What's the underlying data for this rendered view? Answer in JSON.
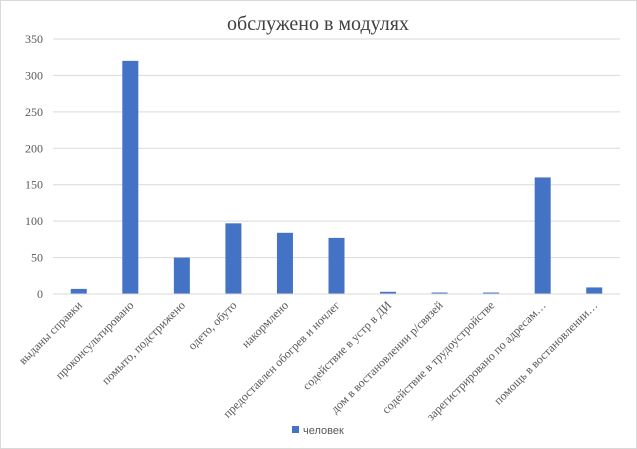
{
  "chart_data": {
    "type": "bar",
    "title": "обслужено в модулях",
    "categories": [
      "выданы справки",
      "проконсультировано",
      "помыто, подстрижено",
      "одето, обуто",
      "накормлено",
      "предоставлен обогрев и ночлег",
      "содействие в устр в ДИ",
      "дом в востановлении р/связей",
      "содействие в трудоустройстве",
      "зарегистрировано по адресам…",
      "помощь в востановлении…"
    ],
    "series": [
      {
        "name": "человек",
        "color": "#4472C4",
        "values": [
          7,
          320,
          50,
          97,
          84,
          77,
          3,
          2,
          2,
          160,
          9
        ]
      }
    ],
    "ylim": [
      0,
      350
    ],
    "yticks": [
      0,
      50,
      100,
      150,
      200,
      250,
      300,
      350
    ],
    "grid": true,
    "legend": "bottom"
  }
}
